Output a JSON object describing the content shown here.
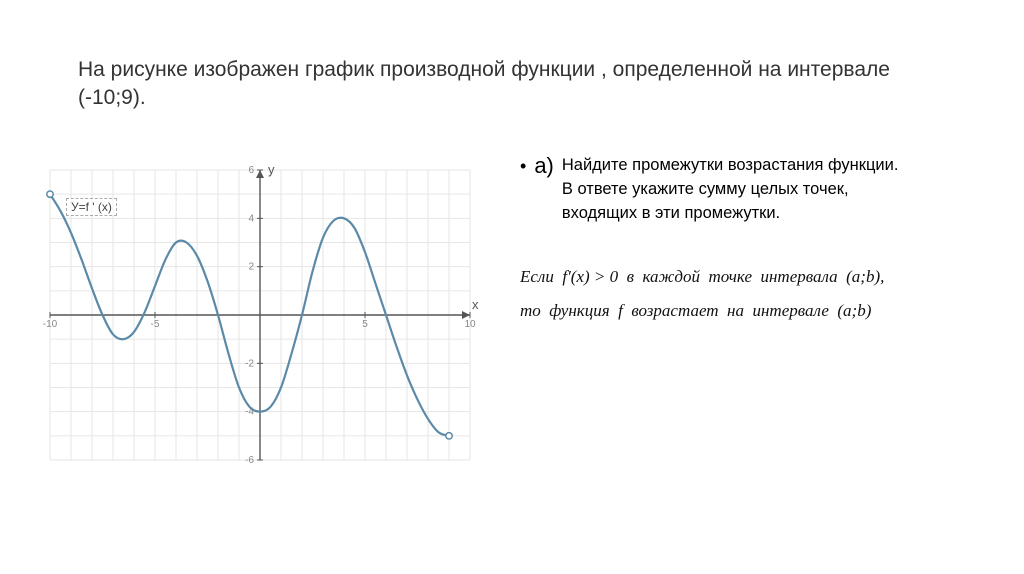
{
  "title": "На рисунке изображен график производной функции , определенной на интервале (-10;9).",
  "question": {
    "bullet": "•",
    "label": "а)",
    "lines": [
      "Найдите промежутки возрастания функции.",
      "В ответе укажите сумму целых точек,",
      " входящих в эти промежутки."
    ]
  },
  "hint": {
    "line1_html": "Если&nbsp;&nbsp;<i>f&prime;</i>(<i>x</i>) &gt; 0&nbsp;&nbsp;в&nbsp;&nbsp;каждой&nbsp;&nbsp;точке&nbsp;&nbsp;интервала&nbsp;&nbsp;(<i>a</i>;<i>b</i>),",
    "line2_html": "то&nbsp;&nbsp;функция&nbsp;&nbsp;<i>f</i>&nbsp;&nbsp;возрастает&nbsp;&nbsp;на&nbsp;&nbsp;интервале&nbsp;&nbsp;(<i>a</i>;<i>b</i>)"
  },
  "chart": {
    "curve_label": "У=f ' (x)",
    "x_axis_label": "x",
    "y_axis_label": "y",
    "xlim": [
      -10,
      10
    ],
    "ylim": [
      -6,
      6
    ],
    "xtick_step": 5,
    "ytick_step": 2,
    "grid_step": 1,
    "grid_color": "#e6e6e6",
    "axis_color": "#555555",
    "curve_color": "#5b8aa8",
    "curve_width": 2.2,
    "endpoint_fill": "#ffffff",
    "endpoint_stroke": "#5b8aa8",
    "endpoint_radius": 3.2,
    "background": "#ffffff",
    "points": [
      [
        -10,
        5.0
      ],
      [
        -9.5,
        4.3
      ],
      [
        -9.0,
        3.4
      ],
      [
        -8.5,
        2.3
      ],
      [
        -8.0,
        1.1
      ],
      [
        -7.5,
        0.0
      ],
      [
        -7.0,
        -0.8
      ],
      [
        -6.5,
        -1.0
      ],
      [
        -6.0,
        -0.7
      ],
      [
        -5.5,
        0.1
      ],
      [
        -5.0,
        1.2
      ],
      [
        -4.5,
        2.3
      ],
      [
        -4.0,
        3.0
      ],
      [
        -3.5,
        3.0
      ],
      [
        -3.0,
        2.45
      ],
      [
        -2.5,
        1.4
      ],
      [
        -2.0,
        0.0
      ],
      [
        -1.5,
        -1.6
      ],
      [
        -1.0,
        -3.0
      ],
      [
        -0.5,
        -3.8
      ],
      [
        0.0,
        -4.0
      ],
      [
        0.5,
        -3.8
      ],
      [
        1.0,
        -3.0
      ],
      [
        1.5,
        -1.6
      ],
      [
        2.0,
        0.0
      ],
      [
        2.5,
        1.8
      ],
      [
        3.0,
        3.2
      ],
      [
        3.5,
        3.9
      ],
      [
        4.0,
        4.0
      ],
      [
        4.5,
        3.6
      ],
      [
        5.0,
        2.6
      ],
      [
        5.5,
        1.3
      ],
      [
        6.0,
        0.0
      ],
      [
        6.5,
        -1.3
      ],
      [
        7.0,
        -2.5
      ],
      [
        7.5,
        -3.5
      ],
      [
        8.0,
        -4.3
      ],
      [
        8.5,
        -4.85
      ],
      [
        9.0,
        -5.0
      ]
    ]
  }
}
